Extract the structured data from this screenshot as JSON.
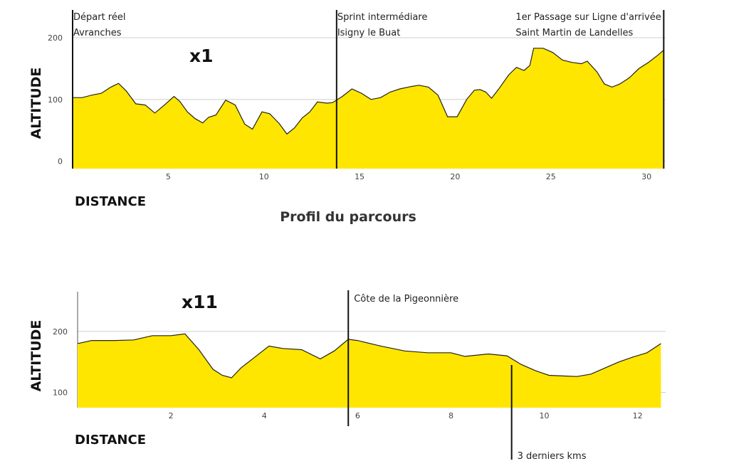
{
  "title": "Profil du parcours",
  "colors": {
    "fill": "#ffe600",
    "stroke": "#222222"
  },
  "chart_data": [
    {
      "type": "area",
      "laps_label": "x1",
      "ylabel": "ALTITUDE",
      "xlabel": "DISTANCE",
      "xlim": [
        0,
        31
      ],
      "ylim": [
        -12,
        215
      ],
      "xticks": [
        5,
        10,
        15,
        20,
        25,
        30
      ],
      "yticks": [
        0,
        100,
        200
      ],
      "x": [
        0,
        0.5,
        1,
        1.5,
        2,
        2.4,
        2.8,
        3.3,
        3.8,
        4.3,
        4.8,
        5.3,
        5.6,
        6.0,
        6.4,
        6.8,
        7.1,
        7.5,
        8.0,
        8.5,
        9.0,
        9.4,
        9.9,
        10.3,
        10.8,
        11.2,
        11.6,
        12.0,
        12.4,
        12.8,
        13.3,
        13.6,
        14.1,
        14.6,
        15.1,
        15.6,
        16.1,
        16.6,
        17.1,
        17.7,
        18.1,
        18.6,
        19.1,
        19.6,
        20.1,
        20.6,
        21.0,
        21.3,
        21.6,
        21.9,
        22.3,
        22.8,
        23.2,
        23.6,
        23.9,
        24.1,
        24.6,
        25.1,
        25.6,
        26.1,
        26.6,
        26.9,
        27.4,
        27.8,
        28.2,
        28.6,
        29.1,
        29.6,
        30.1,
        30.6,
        30.9
      ],
      "y": [
        103,
        103,
        107,
        110,
        120,
        126,
        114,
        93,
        91,
        78,
        91,
        105,
        97,
        80,
        69,
        62,
        71,
        75,
        99,
        91,
        60,
        52,
        80,
        77,
        61,
        44,
        54,
        70,
        80,
        96,
        94,
        95,
        105,
        117,
        110,
        100,
        103,
        112,
        117,
        121,
        123,
        120,
        107,
        72,
        72,
        100,
        115,
        116,
        112,
        102,
        118,
        140,
        152,
        147,
        155,
        183,
        183,
        176,
        164,
        160,
        158,
        162,
        145,
        125,
        120,
        125,
        135,
        150,
        160,
        172,
        180
      ],
      "markers": [
        {
          "x": 0,
          "line1": "Départ réel",
          "line2": "Avranches"
        },
        {
          "x": 13.8,
          "line1": "Sprint intermédiare",
          "line2": "Isigny le Buat"
        },
        {
          "x": 30.9,
          "line1": "1er Passage sur Ligne d'arrivée",
          "line2": "Saint Martin de Landelles"
        }
      ]
    },
    {
      "type": "area",
      "laps_label": "x11",
      "ylabel": "ALTITUDE",
      "xlabel": "DISTANCE",
      "xlim": [
        0,
        12.6
      ],
      "ylim": [
        75,
        265
      ],
      "xticks": [
        2,
        4,
        6,
        8,
        10,
        12
      ],
      "yticks": [
        100,
        200
      ],
      "x": [
        0,
        0.3,
        0.8,
        1.2,
        1.6,
        2.0,
        2.3,
        2.6,
        2.9,
        3.1,
        3.3,
        3.5,
        3.8,
        4.1,
        4.4,
        4.8,
        5.2,
        5.5,
        5.8,
        6.0,
        6.5,
        7.0,
        7.5,
        8.0,
        8.3,
        8.8,
        9.2,
        9.5,
        9.8,
        10.1,
        10.4,
        10.7,
        11.0,
        11.3,
        11.6,
        11.9,
        12.2,
        12.5
      ],
      "y": [
        180,
        185,
        185,
        186,
        193,
        193,
        196,
        170,
        138,
        128,
        124,
        140,
        158,
        176,
        172,
        170,
        155,
        168,
        187,
        185,
        176,
        168,
        165,
        165,
        159,
        163,
        160,
        146,
        136,
        128,
        127,
        126,
        130,
        140,
        150,
        158,
        165,
        180
      ],
      "markers": [
        {
          "x": 5.8,
          "line1": "Côte de la Pigeonnière",
          "line2": "",
          "label_pos": "top"
        },
        {
          "x": 9.3,
          "line1": "3 derniers kms",
          "line2": "",
          "label_pos": "bottom"
        }
      ]
    }
  ]
}
